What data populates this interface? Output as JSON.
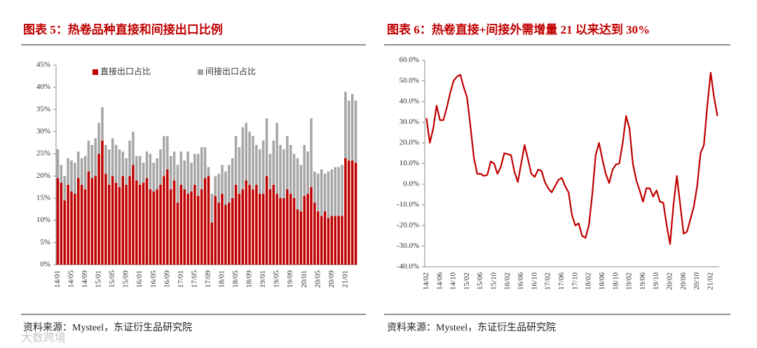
{
  "chart_data": [
    {
      "type": "bar",
      "stacked": true,
      "title": "图表 5：热卷品种直接和间接出口比例",
      "source": "资料来源：Mysteel，东证衍生品研究院",
      "categories": [
        "14/01",
        null,
        null,
        null,
        "14/05",
        null,
        null,
        null,
        "14/09",
        null,
        null,
        null,
        "15/01",
        null,
        null,
        null,
        "15/05",
        null,
        null,
        null,
        "15/09",
        null,
        null,
        null,
        "16/01",
        null,
        null,
        null,
        "16/05",
        null,
        null,
        null,
        "16/09",
        null,
        null,
        null,
        "17/01",
        null,
        null,
        null,
        "17/05",
        null,
        null,
        null,
        "17/09",
        null,
        null,
        null,
        "18/01",
        null,
        null,
        null,
        "18/05",
        null,
        null,
        null,
        "18/09",
        null,
        null,
        null,
        "19/01",
        null,
        null,
        null,
        "19/05",
        null,
        null,
        null,
        "19/09",
        null,
        null,
        null,
        "20/01",
        null,
        null,
        null,
        "20/05",
        null,
        null,
        null,
        "20/09",
        null,
        null,
        null,
        "21/01",
        null,
        null,
        null
      ],
      "series": [
        {
          "name": "直接出口占比",
          "color": "#c00000",
          "values": [
            19.5,
            18.5,
            14.5,
            18,
            16.5,
            16,
            19.5,
            18,
            17,
            21,
            19.5,
            20,
            25,
            28,
            20.5,
            18,
            20,
            18.5,
            17.5,
            20,
            18,
            20,
            22.5,
            19,
            18,
            18.5,
            19.5,
            17,
            16.5,
            17,
            18,
            20,
            21.5,
            17,
            19,
            14,
            18,
            17,
            16,
            16.5,
            18,
            15.5,
            17,
            19.5,
            20,
            9.5,
            15.5,
            14,
            16,
            13.5,
            14,
            15,
            18,
            16,
            17,
            19,
            18,
            17,
            18,
            16,
            16,
            20,
            17,
            18,
            16,
            15,
            15,
            17,
            16,
            15,
            12.5,
            12,
            15.5,
            16,
            17.5,
            14,
            12,
            11,
            12,
            10.5,
            11,
            11,
            11,
            11,
            24,
            23.5,
            23.5,
            23
          ]
        },
        {
          "name": "间接出口占比",
          "color": "#a6a6a6",
          "values": [
            6.5,
            4,
            5.5,
            6,
            7,
            7,
            6,
            6,
            7.5,
            7,
            7.5,
            8.5,
            7,
            7.5,
            6.5,
            8,
            8.5,
            8.5,
            8.5,
            5.5,
            6,
            8,
            7.5,
            5.5,
            6.5,
            4.5,
            6,
            8,
            6.5,
            7,
            8,
            9,
            7.5,
            7.5,
            6.5,
            8.5,
            7.5,
            6.5,
            9.5,
            6.5,
            7,
            9.5,
            9.5,
            7,
            2,
            6.5,
            4.5,
            6.5,
            6.5,
            7.5,
            8.5,
            9,
            11,
            10.5,
            14,
            13,
            12,
            12,
            9,
            10,
            12,
            13,
            8,
            10,
            16,
            12,
            11,
            12,
            11,
            10,
            11.5,
            10.5,
            11.5,
            9.5,
            15.5,
            7,
            8.5,
            10.5,
            8.5,
            10.5,
            10.5,
            11,
            11,
            11.5,
            15,
            13.5,
            15,
            14
          ]
        }
      ],
      "ylim": [
        0,
        45
      ],
      "yticks": [
        {
          "value": 0,
          "label": "0%"
        },
        {
          "value": 5,
          "label": "5%"
        },
        {
          "value": 10,
          "label": "10%"
        },
        {
          "value": 15,
          "label": "15%"
        },
        {
          "value": 20,
          "label": "20%"
        },
        {
          "value": 25,
          "label": "25%"
        },
        {
          "value": 30,
          "label": "30%"
        },
        {
          "value": 35,
          "label": "35%"
        },
        {
          "value": 40,
          "label": "40%"
        },
        {
          "value": 45,
          "label": "45%"
        }
      ],
      "legend": "top"
    },
    {
      "type": "line",
      "title": "图表 6：热卷直接+间接外需增量 21 以来达到 30%",
      "source": "资料来源：Mysteel，东证衍生品研究院",
      "categories": [
        "14/02",
        null,
        null,
        null,
        "14/06",
        null,
        null,
        null,
        "14/10",
        null,
        null,
        null,
        "15/02",
        null,
        null,
        null,
        "15/06",
        null,
        null,
        null,
        "15/10",
        null,
        null,
        null,
        "16/02",
        null,
        null,
        null,
        "16/06",
        null,
        null,
        null,
        "16/10",
        null,
        null,
        null,
        "17/02",
        null,
        null,
        null,
        "17/06",
        null,
        null,
        null,
        "17/10",
        null,
        null,
        null,
        "18/02",
        null,
        null,
        null,
        "18/06",
        null,
        null,
        null,
        "18/10",
        null,
        null,
        null,
        "19/02",
        null,
        null,
        null,
        "19/06",
        null,
        null,
        null,
        "19/10",
        null,
        null,
        null,
        "20/02",
        null,
        null,
        null,
        "20/06",
        null,
        null,
        null,
        "20/10",
        null,
        null,
        null,
        "21/02",
        null,
        null
      ],
      "values": [
        32,
        20,
        27,
        38,
        31,
        31,
        37,
        44,
        50,
        52,
        53,
        47,
        42,
        28,
        13,
        5,
        5,
        4,
        4.5,
        11,
        10,
        5,
        8.5,
        15,
        14.5,
        14,
        6,
        1,
        10,
        19,
        12,
        5,
        3.5,
        7,
        6.5,
        1,
        -2,
        -4,
        -1,
        2,
        3,
        -1,
        -4,
        -15,
        -20,
        -19,
        -25,
        -26,
        -20,
        -5,
        14,
        20,
        12,
        5,
        0.5,
        7,
        9.5,
        10,
        20,
        33,
        27,
        10,
        2,
        -3,
        -8.5,
        -2,
        -2,
        -6,
        -3,
        -8.5,
        -9,
        -20,
        -29,
        -10,
        4,
        -10,
        -24,
        -23,
        -17,
        -11,
        -1,
        15,
        19,
        38,
        54,
        42,
        33
      ],
      "color": "#c00000",
      "ylim": [
        -40,
        60
      ],
      "yticks": [
        {
          "value": -40,
          "label": "-40.0%"
        },
        {
          "value": -30,
          "label": "-30.0%"
        },
        {
          "value": -20,
          "label": "-20.0%"
        },
        {
          "value": -10,
          "label": "-10.0%"
        },
        {
          "value": 0,
          "label": "0.0%"
        },
        {
          "value": 10,
          "label": "10.0%"
        },
        {
          "value": 20,
          "label": "20.0%"
        },
        {
          "value": 30,
          "label": "30.0%"
        },
        {
          "value": 40,
          "label": "40.0%"
        },
        {
          "value": 50,
          "label": "50.0%"
        },
        {
          "value": 60,
          "label": "60.0%"
        }
      ]
    }
  ],
  "watermark": "大数跨境"
}
